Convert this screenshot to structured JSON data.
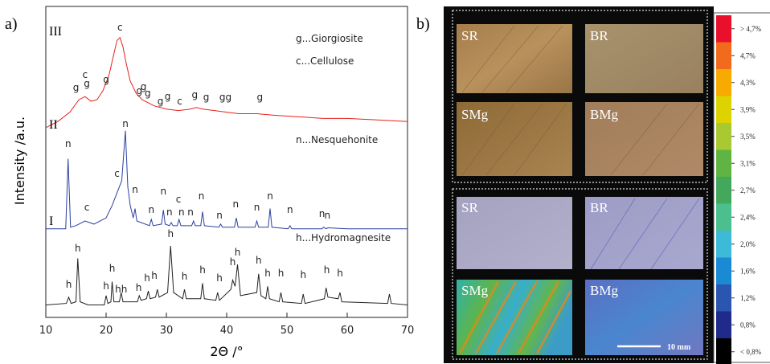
{
  "chart_data": {
    "type": "line",
    "panel_label": "a)",
    "x_label": "2Θ /°",
    "y_label": "Intensity /a.u.",
    "xlim": [
      10,
      70
    ],
    "xticks": [
      10,
      20,
      30,
      40,
      50,
      60,
      70
    ],
    "ylim": [
      0,
      100
    ],
    "series": [
      {
        "name": "III",
        "color": "#e8201c",
        "notes": [
          "g...Giorgiosite",
          "c...Cellulose"
        ],
        "x": [
          10,
          12,
          14,
          15.5,
          16.5,
          17.5,
          18.5,
          19.5,
          20.5,
          21.2,
          21.8,
          22.3,
          22.8,
          23.3,
          24,
          25,
          26,
          27,
          28,
          30,
          32,
          34,
          35,
          36,
          38,
          40,
          42,
          45,
          48,
          52,
          56,
          60,
          65,
          70
        ],
        "values": [
          61,
          63,
          66,
          70,
          71,
          69.5,
          70,
          73,
          78,
          84,
          89,
          90,
          87,
          82,
          76,
          72,
          70,
          69,
          68,
          67,
          66.5,
          67,
          67.5,
          67,
          66.5,
          66,
          65.5,
          65.5,
          65,
          64.5,
          64,
          64,
          63.5,
          63
        ],
        "peaks": [
          {
            "label": "g",
            "x": 15,
            "y": 72.9
          },
          {
            "label": "c",
            "x": 16.5,
            "y": 77
          },
          {
            "label": "g",
            "x": 16.8,
            "y": 74.2
          },
          {
            "label": "g",
            "x": 20,
            "y": 75.5
          },
          {
            "label": "c",
            "x": 22.3,
            "y": 92.2
          },
          {
            "label": "g",
            "x": 25.5,
            "y": 71.8
          },
          {
            "label": "g",
            "x": 26.2,
            "y": 73.1
          },
          {
            "label": "g",
            "x": 26.9,
            "y": 71
          },
          {
            "label": "g",
            "x": 29,
            "y": 68.5
          },
          {
            "label": "g",
            "x": 30.2,
            "y": 70
          },
          {
            "label": "c",
            "x": 32.2,
            "y": 68.5
          },
          {
            "label": "g",
            "x": 34.7,
            "y": 70.5
          },
          {
            "label": "g",
            "x": 36.6,
            "y": 69.8
          },
          {
            "label": "gg",
            "x": 39.8,
            "y": 69.8
          },
          {
            "label": "g",
            "x": 45.5,
            "y": 69.8
          }
        ]
      },
      {
        "name": "II",
        "color": "#2d3f9e",
        "notes": [
          "n...Nesquehonite"
        ],
        "x": [
          10,
          13.3,
          13.7,
          14.1,
          15,
          16.5,
          18,
          20,
          21,
          22,
          22.6,
          23.2,
          23.6,
          24,
          24.5,
          24.8,
          25.1,
          27.2,
          27.5,
          27.8,
          29.2,
          29.5,
          29.8,
          30.5,
          30.8,
          31.1,
          31.8,
          32.1,
          32.4,
          34.2,
          34.5,
          34.8,
          35.7,
          36,
          36.3,
          38.7,
          39,
          39.3,
          41.3,
          41.6,
          41.9,
          44.7,
          45,
          45.3,
          46.9,
          47.2,
          47.5,
          50.2,
          50.5,
          50.8,
          55.8,
          56.1,
          56.5,
          56.8,
          60,
          70
        ],
        "values": [
          28.5,
          28.5,
          51,
          29,
          29.5,
          31,
          30,
          32,
          36,
          41,
          44,
          60,
          42,
          36,
          32,
          35,
          31,
          29.5,
          31.5,
          29.5,
          30,
          34.5,
          30,
          29.5,
          30.5,
          29.5,
          29.5,
          31.5,
          29.5,
          29.5,
          31,
          29.5,
          29.5,
          34,
          29.5,
          29,
          30,
          29,
          29,
          32,
          29,
          29,
          31,
          29,
          29,
          35,
          29,
          28.5,
          29.5,
          28.5,
          28.5,
          29,
          28.5,
          28.8,
          28.5,
          28.5
        ],
        "peaks": [
          {
            "label": "n",
            "x": 13.7,
            "y": 54.8
          },
          {
            "label": "c",
            "x": 16.8,
            "y": 34.4
          },
          {
            "label": "c",
            "x": 21.8,
            "y": 45.2
          },
          {
            "label": "n",
            "x": 23.2,
            "y": 61.2
          },
          {
            "label": "n",
            "x": 24.8,
            "y": 40
          },
          {
            "label": "n",
            "x": 27.5,
            "y": 33.6
          },
          {
            "label": "n",
            "x": 29.5,
            "y": 39.5
          },
          {
            "label": "n",
            "x": 30.5,
            "y": 32.8
          },
          {
            "label": "c",
            "x": 32,
            "y": 37
          },
          {
            "label": "n",
            "x": 32.5,
            "y": 32.8
          },
          {
            "label": "n",
            "x": 34,
            "y": 32.8
          },
          {
            "label": "n",
            "x": 35.8,
            "y": 38
          },
          {
            "label": "n",
            "x": 38.8,
            "y": 31.8
          },
          {
            "label": "n",
            "x": 41.5,
            "y": 35.4
          },
          {
            "label": "n",
            "x": 45,
            "y": 34.4
          },
          {
            "label": "n",
            "x": 47.2,
            "y": 38
          },
          {
            "label": "n",
            "x": 50.5,
            "y": 33.6
          },
          {
            "label": "n",
            "x": 55.8,
            "y": 32.3
          },
          {
            "label": "n",
            "x": 56.7,
            "y": 31.8
          }
        ]
      },
      {
        "name": "I",
        "color": "#222222",
        "notes": [
          "h...Hydromagnesite"
        ],
        "x": [
          10,
          13.4,
          13.8,
          14.2,
          15,
          15.3,
          15.7,
          17,
          19.7,
          20,
          20.3,
          20.8,
          21,
          21.3,
          22.2,
          22.5,
          22.8,
          25.2,
          25.5,
          25.8,
          26.7,
          27,
          27.3,
          28.2,
          28.5,
          28.8,
          30.2,
          30.7,
          31.2,
          32.7,
          33,
          33.3,
          35.7,
          36,
          36.3,
          38.2,
          38.5,
          38.8,
          40.7,
          41,
          41.4,
          41.8,
          42.3,
          45,
          45.3,
          45.7,
          46.5,
          46.8,
          47.1,
          48.7,
          49,
          49.3,
          52.4,
          52.7,
          53,
          56.2,
          56.5,
          56.8,
          58.5,
          58.8,
          59.1,
          66.7,
          67,
          67.3,
          70
        ],
        "values": [
          4,
          4.5,
          6.5,
          4.5,
          5,
          19,
          5,
          4,
          4,
          7,
          4.5,
          5,
          11.5,
          5,
          5,
          8,
          5,
          5,
          7,
          5.5,
          6,
          8.5,
          6,
          6.5,
          9,
          6.5,
          8,
          23,
          8,
          6,
          9,
          6,
          6,
          11,
          6,
          5.5,
          8,
          5.5,
          9,
          12,
          10,
          17,
          7,
          8,
          14,
          7,
          6,
          10,
          6,
          5,
          8,
          5,
          4.5,
          7.5,
          4.5,
          6,
          9.5,
          6.5,
          6,
          8,
          5,
          4.5,
          7.5,
          4.5,
          4
        ],
        "peaks": [
          {
            "label": "h",
            "x": 13.8,
            "y": 9.6
          },
          {
            "label": "h",
            "x": 15.3,
            "y": 21.2
          },
          {
            "label": "h",
            "x": 20,
            "y": 9
          },
          {
            "label": "h",
            "x": 21,
            "y": 14.7
          },
          {
            "label": "hh",
            "x": 22.5,
            "y": 8
          },
          {
            "label": "h",
            "x": 25.4,
            "y": 8.5
          },
          {
            "label": "h",
            "x": 26.8,
            "y": 11.6
          },
          {
            "label": "h",
            "x": 28,
            "y": 12.4
          },
          {
            "label": "h",
            "x": 30.7,
            "y": 25.8
          },
          {
            "label": "h",
            "x": 33,
            "y": 12.1
          },
          {
            "label": "h",
            "x": 36,
            "y": 14.2
          },
          {
            "label": "h",
            "x": 38.8,
            "y": 11.6
          },
          {
            "label": "h",
            "x": 41,
            "y": 16.8
          },
          {
            "label": "h",
            "x": 41.8,
            "y": 19.9
          },
          {
            "label": "h",
            "x": 45.3,
            "y": 17.3
          },
          {
            "label": "h",
            "x": 46.8,
            "y": 13.2
          },
          {
            "label": "h",
            "x": 49,
            "y": 13.2
          },
          {
            "label": "h",
            "x": 52.7,
            "y": 12.7
          },
          {
            "label": "h",
            "x": 56.6,
            "y": 14.2
          },
          {
            "label": "h",
            "x": 58.8,
            "y": 13.2
          }
        ]
      }
    ]
  },
  "panel_b": {
    "panel_label": "b)",
    "samples": [
      "SR",
      "BR",
      "SMg",
      "BMg",
      "SR",
      "BR",
      "SMg",
      "BMg"
    ],
    "scale_bar": "10 mm",
    "colorbar": {
      "labels": [
        "> 4,7%",
        "4,7%",
        "4,3%",
        "3,9%",
        "3,5%",
        "3,1%",
        "2,7%",
        "2,4%",
        "2,0%",
        "1,6%",
        "1,2%",
        "0,8%",
        "< 0,8%"
      ],
      "colors": [
        "#e8102a",
        "#f26a1b",
        "#f7aa00",
        "#dcd300",
        "#a9c932",
        "#5fb443",
        "#43a85c",
        "#4cbf8e",
        "#3cbad8",
        "#1a8ad4",
        "#2a56b0",
        "#1f2a8a",
        "#000000"
      ]
    }
  }
}
